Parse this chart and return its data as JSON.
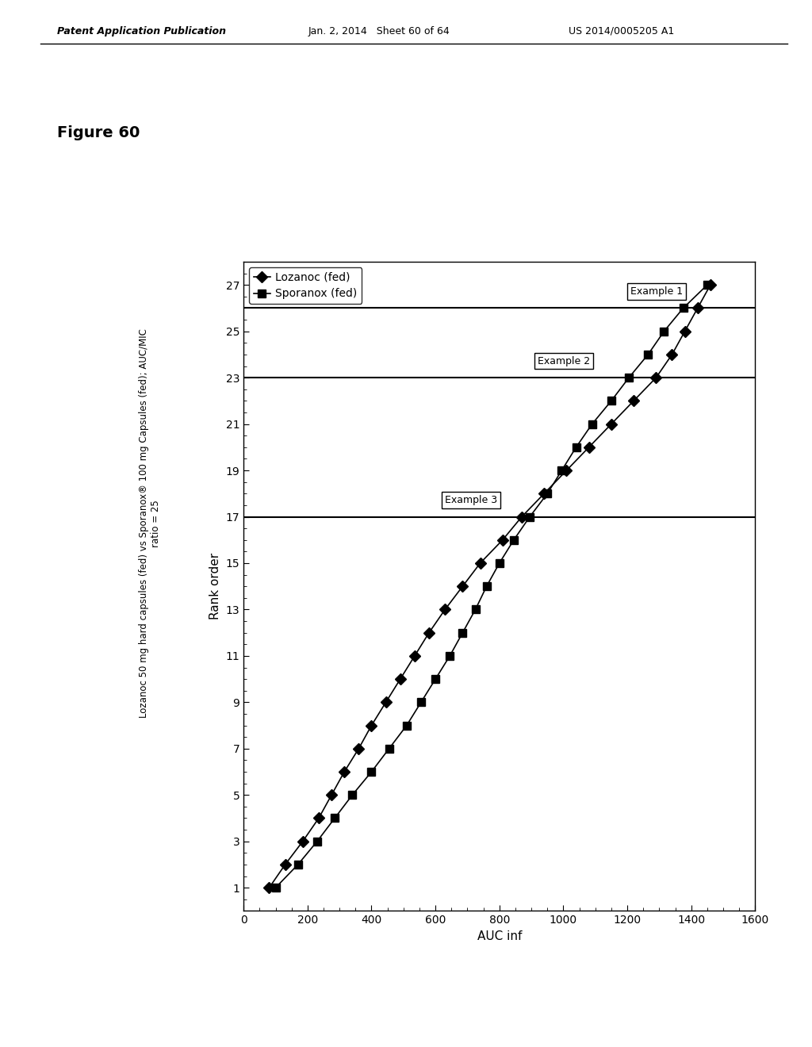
{
  "title": "Figure 60",
  "subtitle_line1": "Lozanoc 50 mg hard capsules (fed) vs Sporanox® 100 mg Capsules (fed); AUC/MIC",
  "subtitle_line2": "ratio = 25",
  "xlabel": "Rank order",
  "ylabel": "AUC inf",
  "ylim": [
    0,
    28
  ],
  "yticks": [
    1,
    3,
    5,
    7,
    9,
    11,
    13,
    15,
    17,
    19,
    21,
    23,
    25,
    27
  ],
  "xlim": [
    0,
    1600
  ],
  "xticks": [
    0,
    200,
    400,
    600,
    800,
    1000,
    1200,
    1400,
    1600
  ],
  "legend_labels": [
    "Lozanoc (fed)",
    "Sporanox (fed)"
  ],
  "example1_y": 26,
  "example2_y": 23,
  "example3_y": 17,
  "lozanoc_rank": [
    1,
    2,
    3,
    4,
    5,
    6,
    7,
    8,
    9,
    10,
    11,
    12,
    13,
    14,
    15,
    16,
    17,
    18,
    19,
    20,
    21,
    22,
    23,
    24,
    25,
    26,
    27
  ],
  "lozanoc_auc": [
    80,
    130,
    185,
    235,
    275,
    315,
    360,
    400,
    445,
    490,
    535,
    580,
    630,
    685,
    740,
    810,
    870,
    940,
    1010,
    1080,
    1150,
    1220,
    1290,
    1340,
    1380,
    1420,
    1460
  ],
  "sporanox_rank": [
    1,
    2,
    3,
    4,
    5,
    6,
    7,
    8,
    9,
    10,
    11,
    12,
    13,
    14,
    15,
    16,
    17,
    18,
    19,
    20,
    21,
    22,
    23,
    24,
    25,
    26,
    27
  ],
  "sporanox_auc": [
    100,
    170,
    230,
    285,
    340,
    400,
    455,
    510,
    555,
    600,
    645,
    685,
    725,
    760,
    800,
    845,
    895,
    950,
    995,
    1040,
    1090,
    1150,
    1205,
    1265,
    1315,
    1375,
    1450
  ],
  "background_color": "#ffffff",
  "line_color": "#000000",
  "marker_size": 7,
  "font_size_title": 13,
  "font_size_axis": 11,
  "font_size_tick": 10,
  "font_size_legend": 10,
  "annotation_font_size": 9,
  "header_pub": "Patent Application Publication",
  "header_date": "Jan. 2, 2014   Sheet 60 of 64",
  "header_us": "US 2014/0005205 A1",
  "fig_label": "Figure 60"
}
